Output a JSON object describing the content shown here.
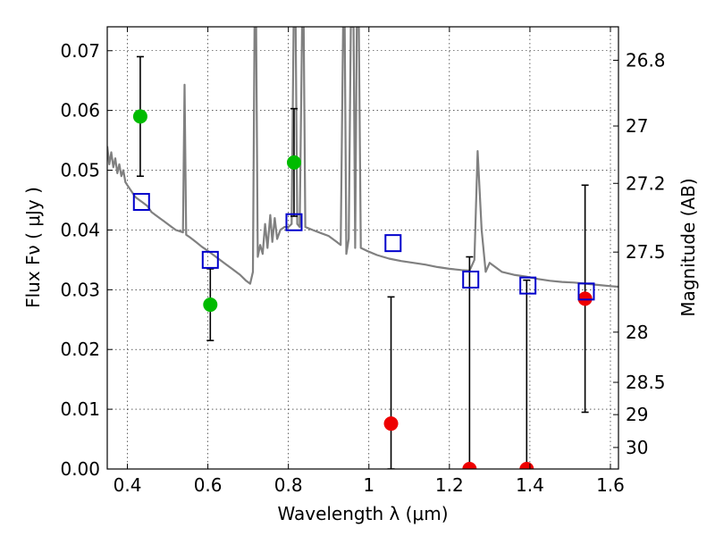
{
  "chart_data": {
    "type": "scatter",
    "xlabel": "Wavelength  λ (μm)",
    "ylabel": "Flux  Fν  ( μJy )",
    "ylabel_right": "Magnitude (AB)",
    "xlim": [
      0.35,
      1.62
    ],
    "ylim": [
      0.0,
      0.074
    ],
    "x_ticks": [
      0.4,
      0.6,
      0.8,
      1.0,
      1.2,
      1.4,
      1.6
    ],
    "x_tick_labels": [
      "0.4",
      "0.6",
      "0.8",
      "1",
      "1.2",
      "1.4",
      "1.6"
    ],
    "y_ticks": [
      0.0,
      0.01,
      0.02,
      0.03,
      0.04,
      0.05,
      0.06,
      0.07
    ],
    "y_tick_labels": [
      "0.00",
      "0.01",
      "0.02",
      "0.03",
      "0.04",
      "0.05",
      "0.06",
      "0.07"
    ],
    "right_ticks": [
      {
        "label": "26.8",
        "flux": 0.0684
      },
      {
        "label": "27",
        "flux": 0.0574
      },
      {
        "label": "27.2",
        "flux": 0.0478
      },
      {
        "label": "27.5",
        "flux": 0.0363
      },
      {
        "label": "28",
        "flux": 0.0229
      },
      {
        "label": "28.5",
        "flux": 0.0145
      },
      {
        "label": "29",
        "flux": 0.0091
      },
      {
        "label": "30",
        "flux": 0.0036
      }
    ],
    "grid": true,
    "grid_style": "dotted",
    "series": [
      {
        "kind": "spectrum-line",
        "color": "#808080",
        "points": [
          [
            0.35,
            0.054
          ],
          [
            0.355,
            0.051
          ],
          [
            0.36,
            0.053
          ],
          [
            0.365,
            0.0505
          ],
          [
            0.37,
            0.052
          ],
          [
            0.375,
            0.0495
          ],
          [
            0.38,
            0.051
          ],
          [
            0.385,
            0.049
          ],
          [
            0.39,
            0.05
          ],
          [
            0.395,
            0.048
          ],
          [
            0.4,
            0.0475
          ],
          [
            0.41,
            0.0465
          ],
          [
            0.42,
            0.0455
          ],
          [
            0.43,
            0.045
          ],
          [
            0.44,
            0.0445
          ],
          [
            0.45,
            0.044
          ],
          [
            0.46,
            0.043
          ],
          [
            0.47,
            0.0425
          ],
          [
            0.48,
            0.042
          ],
          [
            0.49,
            0.0415
          ],
          [
            0.5,
            0.041
          ],
          [
            0.51,
            0.0405
          ],
          [
            0.52,
            0.04
          ],
          [
            0.53,
            0.0398
          ],
          [
            0.538,
            0.0396
          ],
          [
            0.542,
            0.0643
          ],
          [
            0.546,
            0.0392
          ],
          [
            0.555,
            0.0388
          ],
          [
            0.57,
            0.038
          ],
          [
            0.585,
            0.0372
          ],
          [
            0.6,
            0.0365
          ],
          [
            0.62,
            0.0355
          ],
          [
            0.64,
            0.0345
          ],
          [
            0.66,
            0.0335
          ],
          [
            0.68,
            0.0325
          ],
          [
            0.695,
            0.0315
          ],
          [
            0.705,
            0.031
          ],
          [
            0.712,
            0.033
          ],
          [
            0.716,
            0.074
          ],
          [
            0.72,
            0.074
          ],
          [
            0.724,
            0.0355
          ],
          [
            0.73,
            0.0375
          ],
          [
            0.736,
            0.036
          ],
          [
            0.742,
            0.041
          ],
          [
            0.748,
            0.037
          ],
          [
            0.755,
            0.0425
          ],
          [
            0.76,
            0.038
          ],
          [
            0.766,
            0.042
          ],
          [
            0.772,
            0.0385
          ],
          [
            0.78,
            0.04
          ],
          [
            0.79,
            0.0405
          ],
          [
            0.8,
            0.0405
          ],
          [
            0.808,
            0.041
          ],
          [
            0.813,
            0.074
          ],
          [
            0.818,
            0.074
          ],
          [
            0.822,
            0.041
          ],
          [
            0.828,
            0.0405
          ],
          [
            0.834,
            0.074
          ],
          [
            0.838,
            0.074
          ],
          [
            0.842,
            0.0405
          ],
          [
            0.86,
            0.04
          ],
          [
            0.88,
            0.0395
          ],
          [
            0.9,
            0.039
          ],
          [
            0.92,
            0.038
          ],
          [
            0.93,
            0.0375
          ],
          [
            0.936,
            0.074
          ],
          [
            0.94,
            0.074
          ],
          [
            0.944,
            0.036
          ],
          [
            0.95,
            0.0385
          ],
          [
            0.955,
            0.074
          ],
          [
            0.962,
            0.074
          ],
          [
            0.966,
            0.037
          ],
          [
            0.97,
            0.074
          ],
          [
            0.975,
            0.074
          ],
          [
            0.98,
            0.037
          ],
          [
            0.995,
            0.0365
          ],
          [
            1.02,
            0.0358
          ],
          [
            1.05,
            0.0352
          ],
          [
            1.08,
            0.0348
          ],
          [
            1.11,
            0.0345
          ],
          [
            1.14,
            0.0342
          ],
          [
            1.17,
            0.0338
          ],
          [
            1.2,
            0.0335
          ],
          [
            1.23,
            0.0333
          ],
          [
            1.25,
            0.0332
          ],
          [
            1.262,
            0.035
          ],
          [
            1.27,
            0.0532
          ],
          [
            1.28,
            0.04
          ],
          [
            1.29,
            0.033
          ],
          [
            1.3,
            0.0345
          ],
          [
            1.33,
            0.033
          ],
          [
            1.36,
            0.0325
          ],
          [
            1.39,
            0.0322
          ],
          [
            1.42,
            0.0318
          ],
          [
            1.45,
            0.0315
          ],
          [
            1.48,
            0.0313
          ],
          [
            1.51,
            0.0312
          ],
          [
            1.54,
            0.031
          ],
          [
            1.57,
            0.0308
          ],
          [
            1.6,
            0.0306
          ],
          [
            1.62,
            0.0305
          ]
        ]
      },
      {
        "kind": "points",
        "marker": "circle",
        "color": "#00bb00",
        "points": [
          {
            "x": 0.432,
            "y": 0.059,
            "err_lo": 0.01,
            "err_hi": 0.01
          },
          {
            "x": 0.606,
            "y": 0.0275,
            "err_lo": 0.006,
            "err_hi": 0.006
          },
          {
            "x": 0.814,
            "y": 0.0513,
            "err_lo": 0.009,
            "err_hi": 0.009
          }
        ]
      },
      {
        "kind": "points",
        "marker": "circle",
        "color": "#ee0000",
        "points": [
          {
            "x": 1.055,
            "y": 0.0076,
            "err_lo": 0.0076,
            "err_hi": 0.0212
          },
          {
            "x": 1.25,
            "y": 0.0,
            "err_lo": 0.0,
            "err_hi": 0.0355
          },
          {
            "x": 1.392,
            "y": 0.0,
            "err_lo": 0.0,
            "err_hi": 0.0316
          },
          {
            "x": 1.537,
            "y": 0.0285,
            "err_lo": 0.019,
            "err_hi": 0.019
          }
        ]
      },
      {
        "kind": "points",
        "marker": "square-open",
        "color": "#0000cc",
        "points": [
          {
            "x": 0.435,
            "y": 0.0447
          },
          {
            "x": 0.606,
            "y": 0.035
          },
          {
            "x": 0.814,
            "y": 0.0413
          },
          {
            "x": 1.06,
            "y": 0.0378
          },
          {
            "x": 1.253,
            "y": 0.0317
          },
          {
            "x": 1.395,
            "y": 0.0307
          },
          {
            "x": 1.54,
            "y": 0.0297
          }
        ]
      }
    ]
  }
}
